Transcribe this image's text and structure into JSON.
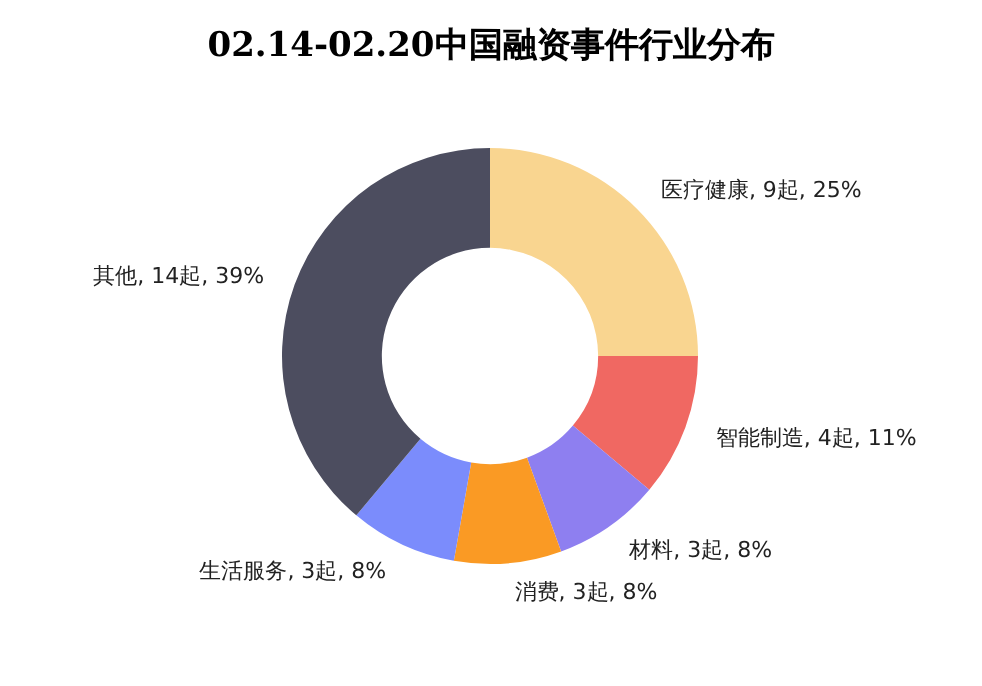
{
  "chart_data": {
    "type": "donut",
    "title": "02.14-02.20中国融资事件行业分布",
    "categories": [
      "医疗健康",
      "智能制造",
      "材料",
      "消费",
      "生活服务",
      "其他"
    ],
    "values": [
      9,
      4,
      3,
      3,
      3,
      14
    ],
    "value_labels": [
      "9起, 25%",
      "4起, 11%",
      "3起, 8%",
      "3起, 8%",
      "3起, 8%",
      "14起, 39%"
    ],
    "colors": [
      "#f9d590",
      "#f06862",
      "#8e7ff0",
      "#fa9a24",
      "#7b8cfc",
      "#4c4d5f"
    ],
    "legend": false
  }
}
